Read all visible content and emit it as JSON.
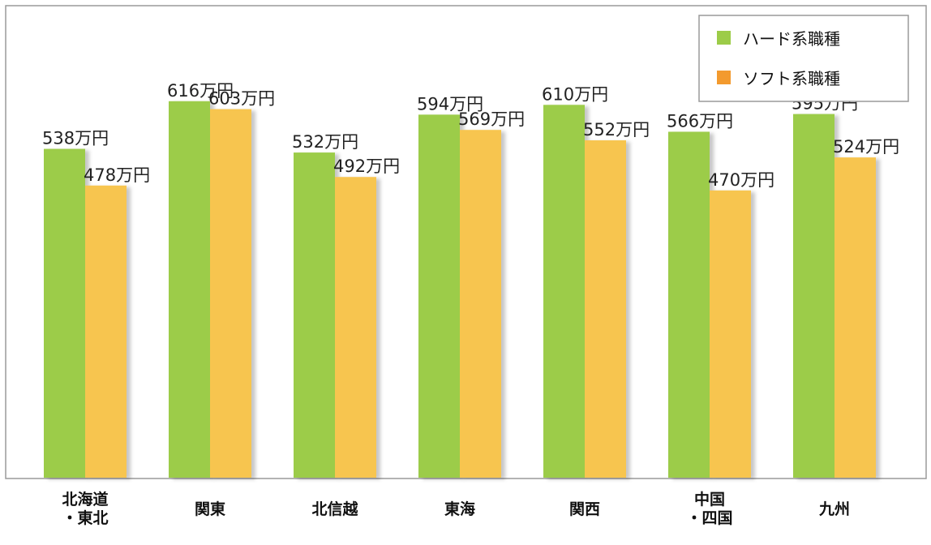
{
  "chart_data": {
    "type": "bar",
    "categories": [
      [
        "北海道",
        "・東北"
      ],
      [
        "関東"
      ],
      [
        "北信越"
      ],
      [
        "東海"
      ],
      [
        "関西"
      ],
      [
        "中国",
        "・四国"
      ],
      [
        "九州"
      ]
    ],
    "series": [
      {
        "name": "ハード系職種",
        "color": "#9ccc48",
        "values": [
          538,
          616,
          532,
          594,
          610,
          566,
          595
        ]
      },
      {
        "name": "ソフト系職種",
        "color": "#f7c550",
        "values": [
          478,
          603,
          492,
          569,
          552,
          470,
          524
        ]
      }
    ],
    "value_suffix": "万円",
    "ylim": [
      0,
      660
    ],
    "grid": false,
    "legend_position": "top-right",
    "legend_swatch_colors": [
      "#9ccc48",
      "#f39a2e"
    ]
  }
}
